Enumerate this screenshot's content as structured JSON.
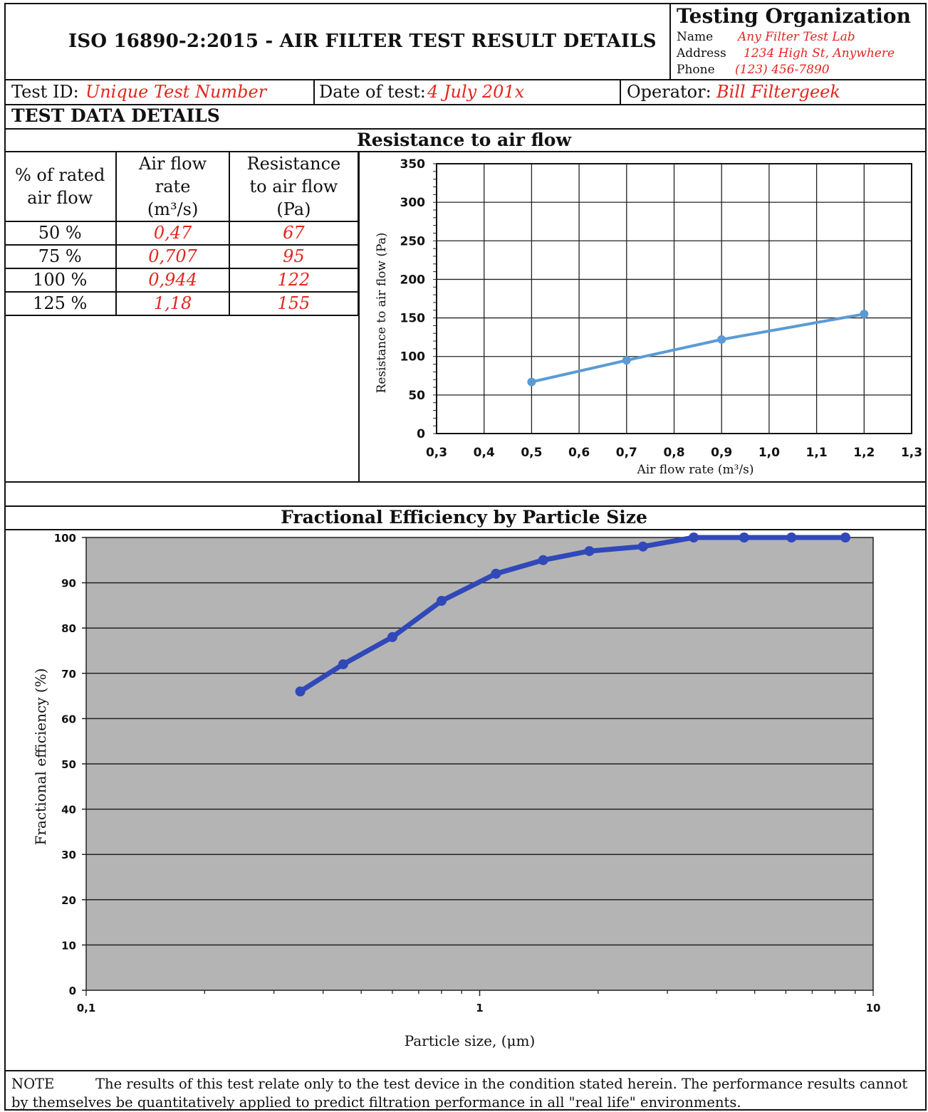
{
  "header": {
    "title": "ISO 16890-2:2015 - AIR FILTER TEST RESULT DETAILS",
    "org": {
      "title": "Testing Organization",
      "name_label": "Name",
      "name_value": "Any Filter Test Lab",
      "address_label": "Address",
      "address_value": "1234 High St, Anywhere",
      "phone_label": "Phone",
      "phone_value": "(123) 456-7890"
    }
  },
  "info": {
    "test_id_label": "Test ID:",
    "test_id_value": "Unique Test Number",
    "date_label": "Date of test:",
    "date_value": "4 July 201x",
    "operator_label": "Operator:",
    "operator_value": "Bill Filtergeek"
  },
  "section_title": "TEST DATA DETAILS",
  "table": {
    "headers": [
      "% of rated\nair flow",
      "Air flow\nrate\n(m³/s)",
      "Resistance\nto air flow\n(Pa)"
    ],
    "rows": [
      [
        "50 %",
        "0,47",
        "67"
      ],
      [
        "75 %",
        "0,707",
        "95"
      ],
      [
        "100 %",
        "0,944",
        "122"
      ],
      [
        "125 %",
        "1,18",
        "155"
      ]
    ]
  },
  "note": {
    "label": "NOTE",
    "text": "The results of this test relate only to the test device in the condition stated herein.  The performance results cannot by themselves be quantitatively applied to predict filtration performance in all \"real life\" environments."
  },
  "colors": {
    "resistance_line": "#5b9bd5",
    "efficiency_line": "#3048b8",
    "plot_background": "#b4b4b4",
    "red_text": "#e0271f"
  },
  "chart_data": [
    {
      "type": "line",
      "title": "Resistance to air flow",
      "xlabel": "Air flow rate (m³/s)",
      "ylabel": "Resistance to air flow (Pa)",
      "xlim": [
        0.3,
        1.3
      ],
      "ylim": [
        0,
        350
      ],
      "xticks": [
        "0,3",
        "0,4",
        "0,5",
        "0,6",
        "0,7",
        "0,8",
        "0,9",
        "1,0",
        "1,1",
        "1,2",
        "1,3"
      ],
      "yticks": [
        "0",
        "50",
        "100",
        "150",
        "200",
        "250",
        "300",
        "350"
      ],
      "grid": true,
      "series": [
        {
          "x": [
            0.5,
            0.7,
            0.9,
            1.2
          ],
          "y": [
            67,
            95,
            122,
            155
          ]
        }
      ]
    },
    {
      "type": "line",
      "title": "Fractional Efficiency by Particle Size",
      "xlabel": "Particle size, (μm)",
      "ylabel": "Fractional efficiency (%)",
      "xscale": "log",
      "xlim": [
        0.1,
        10
      ],
      "ylim": [
        0,
        100
      ],
      "xticks": [
        "0,1",
        "1",
        "10"
      ],
      "yticks": [
        "0",
        "10",
        "20",
        "30",
        "40",
        "50",
        "60",
        "70",
        "80",
        "90",
        "100"
      ],
      "grid": true,
      "series": [
        {
          "x": [
            0.35,
            0.45,
            0.6,
            0.8,
            1.1,
            1.45,
            1.9,
            2.6,
            3.5,
            4.7,
            6.2,
            8.5
          ],
          "y": [
            66,
            72,
            78,
            86,
            92,
            95,
            97,
            98,
            100,
            100,
            100,
            100
          ]
        }
      ]
    }
  ]
}
